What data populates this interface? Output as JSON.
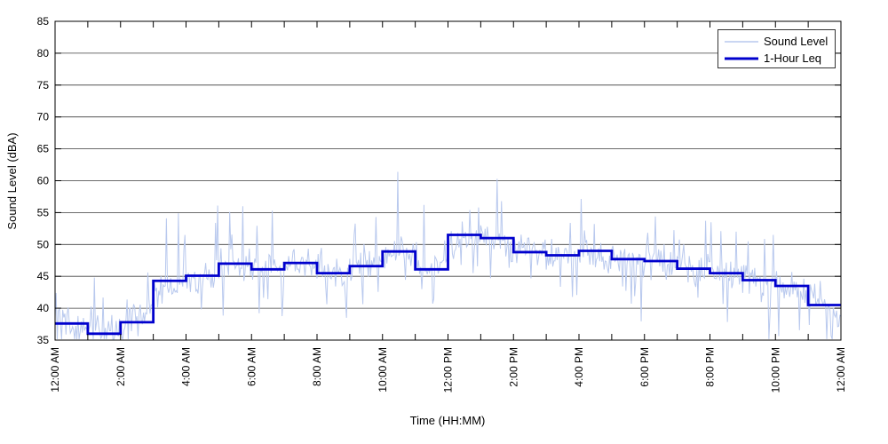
{
  "figure": {
    "background": "#ffffff",
    "plot_border_color": "#000000",
    "grid_color": "#3d3d3d"
  },
  "chart_data": {
    "type": "line",
    "title": "",
    "xlabel": "Time (HH:MM)",
    "ylabel": "Sound Level (dBA)",
    "ylim": [
      35,
      85
    ],
    "ytick_interval": 5,
    "xlim_hours": [
      0,
      24
    ],
    "xtick_major_hours": 2,
    "xtick_minor_hours": 1,
    "xtick_labels": [
      "12:00 AM",
      "2:00 AM",
      "4:00 AM",
      "6:00 AM",
      "8:00 AM",
      "10:00 AM",
      "12:00 PM",
      "2:00 PM",
      "4:00 PM",
      "6:00 PM",
      "8:00 PM",
      "10:00 PM",
      "12:00 AM"
    ],
    "grid": "horizontal-only",
    "legend": {
      "position": "top-right",
      "entries": [
        {
          "label": "Sound Level",
          "color": "#b9c9ee",
          "line_width": 1.3
        },
        {
          "label": "1-Hour Leq",
          "color": "#0000cd",
          "line_width": 3
        }
      ]
    },
    "series": [
      {
        "name": "Sound Level",
        "kind": "noisy-line",
        "color": "#b9c9ee",
        "sample_interval_minutes": 2,
        "seed": 1337,
        "typical_band_dB": 3,
        "needle_probability": 0.1,
        "downward_needle_depth_dB": 6,
        "spike_probability": 0.05,
        "upward_needle_height_dB": 5,
        "end_of_day_decline_dB_per_hour": 4.5,
        "approx_range_dBA": [
          35,
          61.5
        ],
        "spikes_dBA": [
          [
            "01:11",
            44.8
          ],
          [
            "02:50",
            45.6
          ],
          [
            "03:23",
            54.1
          ],
          [
            "03:45",
            54.9
          ],
          [
            "04:58",
            56.1
          ],
          [
            "05:19",
            55.1
          ],
          [
            "05:44",
            56.0
          ],
          [
            "06:38",
            55.3
          ],
          [
            "09:47",
            54.3
          ],
          [
            "10:28",
            61.4
          ],
          [
            "11:16",
            56.2
          ],
          [
            "12:40",
            55.4
          ],
          [
            "12:55",
            55.8
          ],
          [
            "13:30",
            60.3
          ],
          [
            "13:38",
            56.8
          ],
          [
            "16:28",
            53.2
          ],
          [
            "18:20",
            54.4
          ],
          [
            "20:20",
            52.1
          ],
          [
            "21:55",
            51.5
          ]
        ]
      },
      {
        "name": "1-Hour Leq",
        "kind": "step",
        "color": "#0000cd",
        "hours": [
          0,
          1,
          2,
          3,
          4,
          5,
          6,
          7,
          8,
          9,
          10,
          11,
          12,
          13,
          14,
          15,
          16,
          17,
          18,
          19,
          20,
          21,
          22,
          23
        ],
        "values_dBA": [
          37.6,
          36.0,
          37.8,
          44.3,
          45.1,
          47.0,
          46.1,
          47.1,
          45.5,
          46.6,
          48.9,
          46.1,
          51.5,
          51.0,
          48.8,
          48.3,
          49.0,
          47.7,
          47.4,
          46.2,
          45.5,
          44.4,
          43.5,
          40.5
        ]
      }
    ]
  }
}
